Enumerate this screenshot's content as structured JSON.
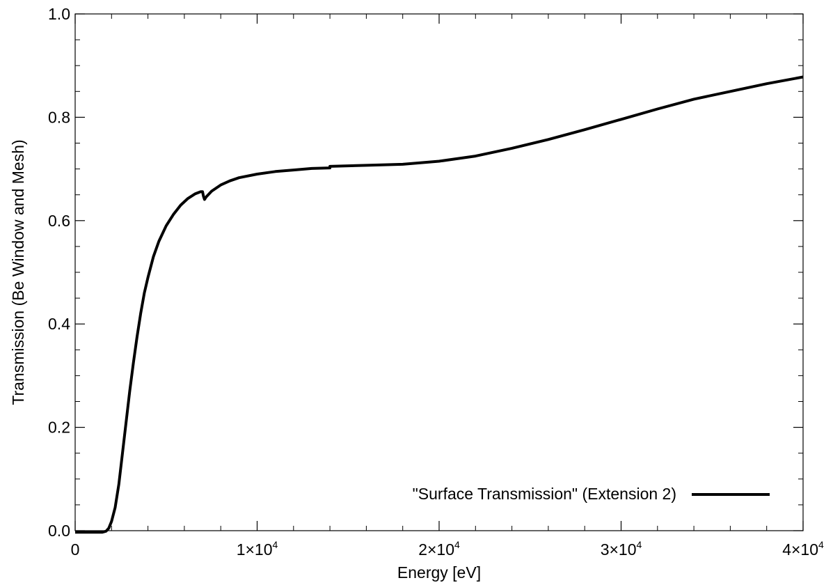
{
  "chart_data": {
    "type": "line",
    "title": "",
    "xlabel": "Energy [eV]",
    "ylabel": "Transmission (Be Window and Mesh)",
    "xlim": [
      0,
      40000
    ],
    "ylim": [
      0.0,
      1.0
    ],
    "grid": false,
    "x_ticks": [
      {
        "value": 0,
        "mantissa": "0",
        "exponent": ""
      },
      {
        "value": 10000,
        "mantissa": "1×10",
        "exponent": "4"
      },
      {
        "value": 20000,
        "mantissa": "2×10",
        "exponent": "4"
      },
      {
        "value": 30000,
        "mantissa": "3×10",
        "exponent": "4"
      },
      {
        "value": 40000,
        "mantissa": "4×10",
        "exponent": "4"
      }
    ],
    "y_ticks": [
      {
        "value": 0.0,
        "label": "0.0"
      },
      {
        "value": 0.2,
        "label": "0.2"
      },
      {
        "value": 0.4,
        "label": "0.4"
      },
      {
        "value": 0.6,
        "label": "0.6"
      },
      {
        "value": 0.8,
        "label": "0.8"
      },
      {
        "value": 1.0,
        "label": "1.0"
      }
    ],
    "legend": {
      "placement": "bottom-right",
      "entries": [
        "\"Surface Transmission\" (Extension 2)"
      ]
    },
    "series": [
      {
        "name": "\"Surface Transmission\" (Extension 2)",
        "color": "#000000",
        "x": [
          0,
          1500,
          1700,
          1850,
          2000,
          2200,
          2400,
          2600,
          2800,
          3000,
          3200,
          3400,
          3600,
          3800,
          4000,
          4300,
          4600,
          5000,
          5400,
          5800,
          6200,
          6600,
          6900,
          7000,
          7050,
          7110,
          7200,
          7500,
          8000,
          8500,
          9000,
          10000,
          11000,
          12000,
          13000,
          13999,
          14001,
          15000,
          16000,
          18000,
          20000,
          22000,
          24000,
          26000,
          28000,
          30000,
          32000,
          34000,
          36000,
          38000,
          40000
        ],
        "y": [
          -0.003,
          -0.003,
          -0.001,
          0.005,
          0.018,
          0.045,
          0.09,
          0.15,
          0.21,
          0.27,
          0.325,
          0.375,
          0.42,
          0.46,
          0.49,
          0.53,
          0.56,
          0.59,
          0.612,
          0.63,
          0.643,
          0.652,
          0.656,
          0.656,
          0.647,
          0.641,
          0.646,
          0.657,
          0.669,
          0.677,
          0.683,
          0.69,
          0.695,
          0.698,
          0.701,
          0.702,
          0.705,
          0.706,
          0.707,
          0.709,
          0.715,
          0.725,
          0.74,
          0.757,
          0.776,
          0.796,
          0.816,
          0.835,
          0.85,
          0.865,
          0.878
        ]
      }
    ]
  }
}
